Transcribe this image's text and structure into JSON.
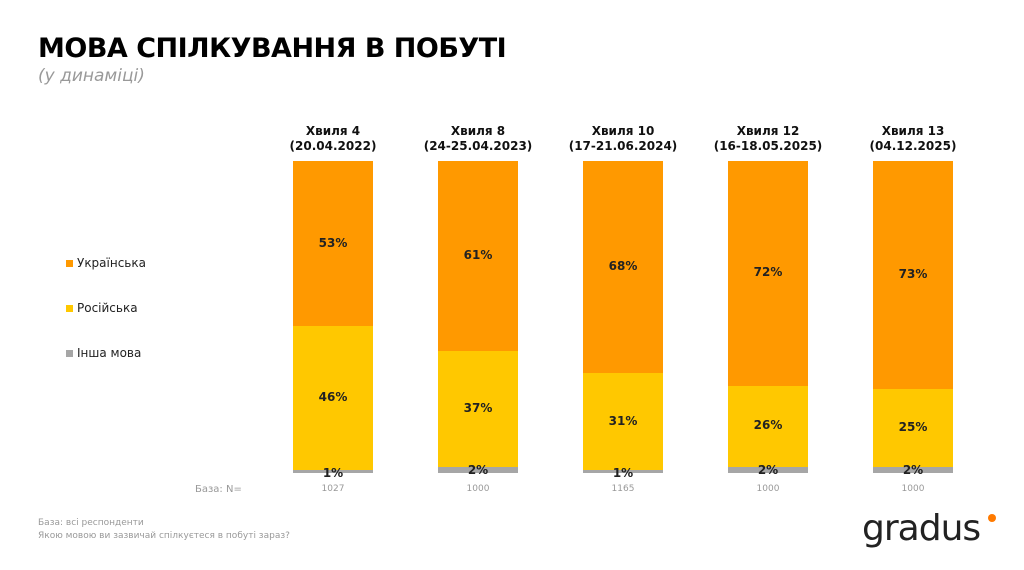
{
  "title": "МОВА СПІЛКУВАННЯ В ПОБУТІ",
  "subtitle": "(у динаміці)",
  "chart_data": {
    "type": "bar",
    "stacked": true,
    "percent": true,
    "categories": [
      [
        "Хвиля 4",
        "(20.04.2022)"
      ],
      [
        "Хвиля 8",
        "(24-25.04.2023)"
      ],
      [
        "Хвиля 10",
        "(17-21.06.2024)"
      ],
      [
        "Хвиля 12",
        "(16-18.05.2025)"
      ],
      [
        "Хвиля 13",
        "(04.12.2025)"
      ]
    ],
    "series": [
      {
        "name": "Українська",
        "color": "#FF9900",
        "values": [
          53,
          61,
          68,
          72,
          73
        ]
      },
      {
        "name": "Російська",
        "color": "#FFC800",
        "values": [
          46,
          37,
          31,
          26,
          25
        ]
      },
      {
        "name": "Інша мова",
        "color": "#A6A6A6",
        "values": [
          1,
          2,
          1,
          2,
          2
        ]
      }
    ],
    "legend_position": "left",
    "base_label": "База: N=",
    "base_values": [
      "1027",
      "1000",
      "1165",
      "1000",
      "1000"
    ]
  },
  "footer": {
    "line1": "База: всі респонденти",
    "line2": "Якою мовою ви зазвичай спілкуєтеся в побуті зараз?"
  },
  "logo": "gradus"
}
